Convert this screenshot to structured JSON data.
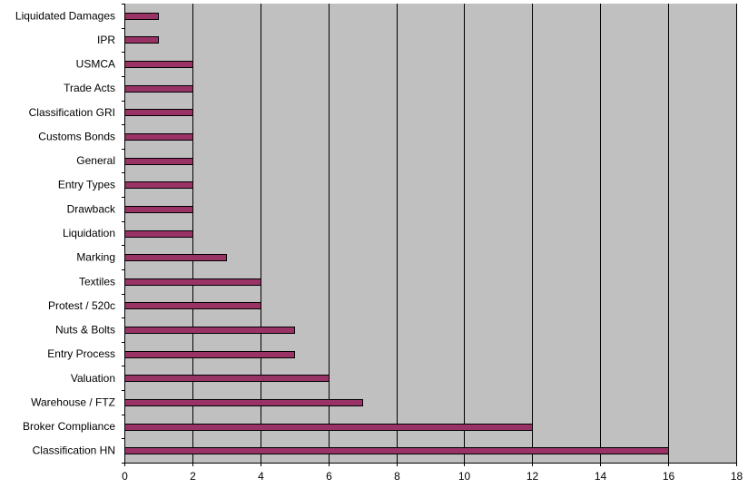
{
  "chart_data": {
    "type": "bar",
    "orientation": "horizontal",
    "categories": [
      "Liquidated Damages",
      "IPR",
      "USMCA",
      "Trade Acts",
      "Classification GRI",
      "Customs Bonds",
      "General",
      "Entry Types",
      "Drawback",
      "Liquidation",
      "Marking",
      "Textiles",
      "Protest / 520c",
      "Nuts & Bolts",
      "Entry Process",
      "Valuation",
      "Warehouse / FTZ",
      "Broker Compliance",
      "Classification HN"
    ],
    "values": [
      1,
      1,
      2,
      2,
      2,
      2,
      2,
      2,
      2,
      2,
      3,
      4,
      4,
      5,
      5,
      6,
      7,
      12,
      16
    ],
    "title": "",
    "xlabel": "",
    "ylabel": "",
    "xlim": [
      0,
      18
    ],
    "xticks": [
      "0",
      "2",
      "4",
      "6",
      "8",
      "10",
      "12",
      "14",
      "16",
      "18"
    ],
    "grid": "vertical",
    "legend": "none",
    "colors": {
      "plot_background": "#c0c0c0",
      "bar_fill": "#993366",
      "bar_stroke": "#000000",
      "gridline": "#000000"
    }
  }
}
